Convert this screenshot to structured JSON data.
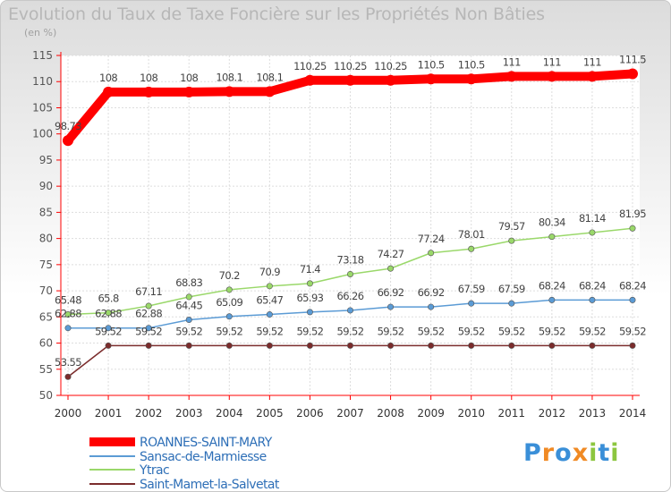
{
  "chart_data": {
    "type": "line",
    "title": "Evolution du Taux de Taxe Foncière sur les Propriétés Non Bâties",
    "subtitle": "(en %)",
    "x": [
      "2000",
      "2001",
      "2002",
      "2003",
      "2004",
      "2005",
      "2006",
      "2007",
      "2008",
      "2009",
      "2010",
      "2011",
      "2012",
      "2013",
      "2014"
    ],
    "ylim": [
      50,
      115
    ],
    "yticks": [
      50,
      55,
      60,
      65,
      70,
      75,
      80,
      85,
      90,
      95,
      100,
      105,
      110,
      115
    ],
    "grid": true,
    "legend_position": "bottom-left",
    "series": [
      {
        "name": "ROANNES-SAINT-MARY",
        "color": "#ff0000",
        "values": [
          98.73,
          108,
          108,
          108,
          108.1,
          108.1,
          110.25,
          110.25,
          110.25,
          110.5,
          110.5,
          111,
          111,
          111,
          111.5
        ],
        "labels": [
          "98.73",
          "108",
          "108",
          "108",
          "108.1",
          "108.1",
          "110.25",
          "110.25",
          "110.25",
          "110.5",
          "110.5",
          "111",
          "111",
          "111",
          "111.5"
        ]
      },
      {
        "name": "Sansac-de-Marmiesse",
        "color": "#5b9bd5",
        "values": [
          62.88,
          62.88,
          62.88,
          64.45,
          65.09,
          65.47,
          65.93,
          66.26,
          66.92,
          66.92,
          67.59,
          67.59,
          68.24,
          68.24,
          68.24
        ],
        "labels": [
          "62.88",
          "62.88",
          "62.88",
          "64.45",
          "65.09",
          "65.47",
          "65.93",
          "66.26",
          "66.92",
          "66.92",
          "67.59",
          "67.59",
          "68.24",
          "68.24",
          "68.24"
        ]
      },
      {
        "name": "Ytrac",
        "color": "#9ad86a",
        "values": [
          65.48,
          65.8,
          67.11,
          68.83,
          70.2,
          70.9,
          71.4,
          73.18,
          74.27,
          77.24,
          78.01,
          79.57,
          80.34,
          81.14,
          81.95
        ],
        "labels": [
          "65.48",
          "65.8",
          "67.11",
          "68.83",
          "70.2",
          "70.9",
          "71.4",
          "73.18",
          "74.27",
          "77.24",
          "78.01",
          "79.57",
          "80.34",
          "81.14",
          "81.95"
        ]
      },
      {
        "name": "Saint-Mamet-la-Salvetat",
        "color": "#7b2c2c",
        "values": [
          53.55,
          59.52,
          59.52,
          59.52,
          59.52,
          59.52,
          59.52,
          59.52,
          59.52,
          59.52,
          59.52,
          59.52,
          59.52,
          59.52,
          59.52
        ],
        "labels": [
          "53.55",
          "59.52",
          "59.52",
          "59.52",
          "59.52",
          "59.52",
          "59.52",
          "59.52",
          "59.52",
          "59.52",
          "59.52",
          "59.52",
          "59.52",
          "59.52",
          "59.52"
        ]
      }
    ]
  },
  "logo": {
    "letters": [
      "P",
      "r",
      "o",
      "x",
      "i",
      "t",
      "i"
    ],
    "colors": [
      "#3a8fd8",
      "#f08a24",
      "#3a8fd8",
      "#f08a24",
      "#8cc63f",
      "#3a8fd8",
      "#8cc63f"
    ]
  }
}
